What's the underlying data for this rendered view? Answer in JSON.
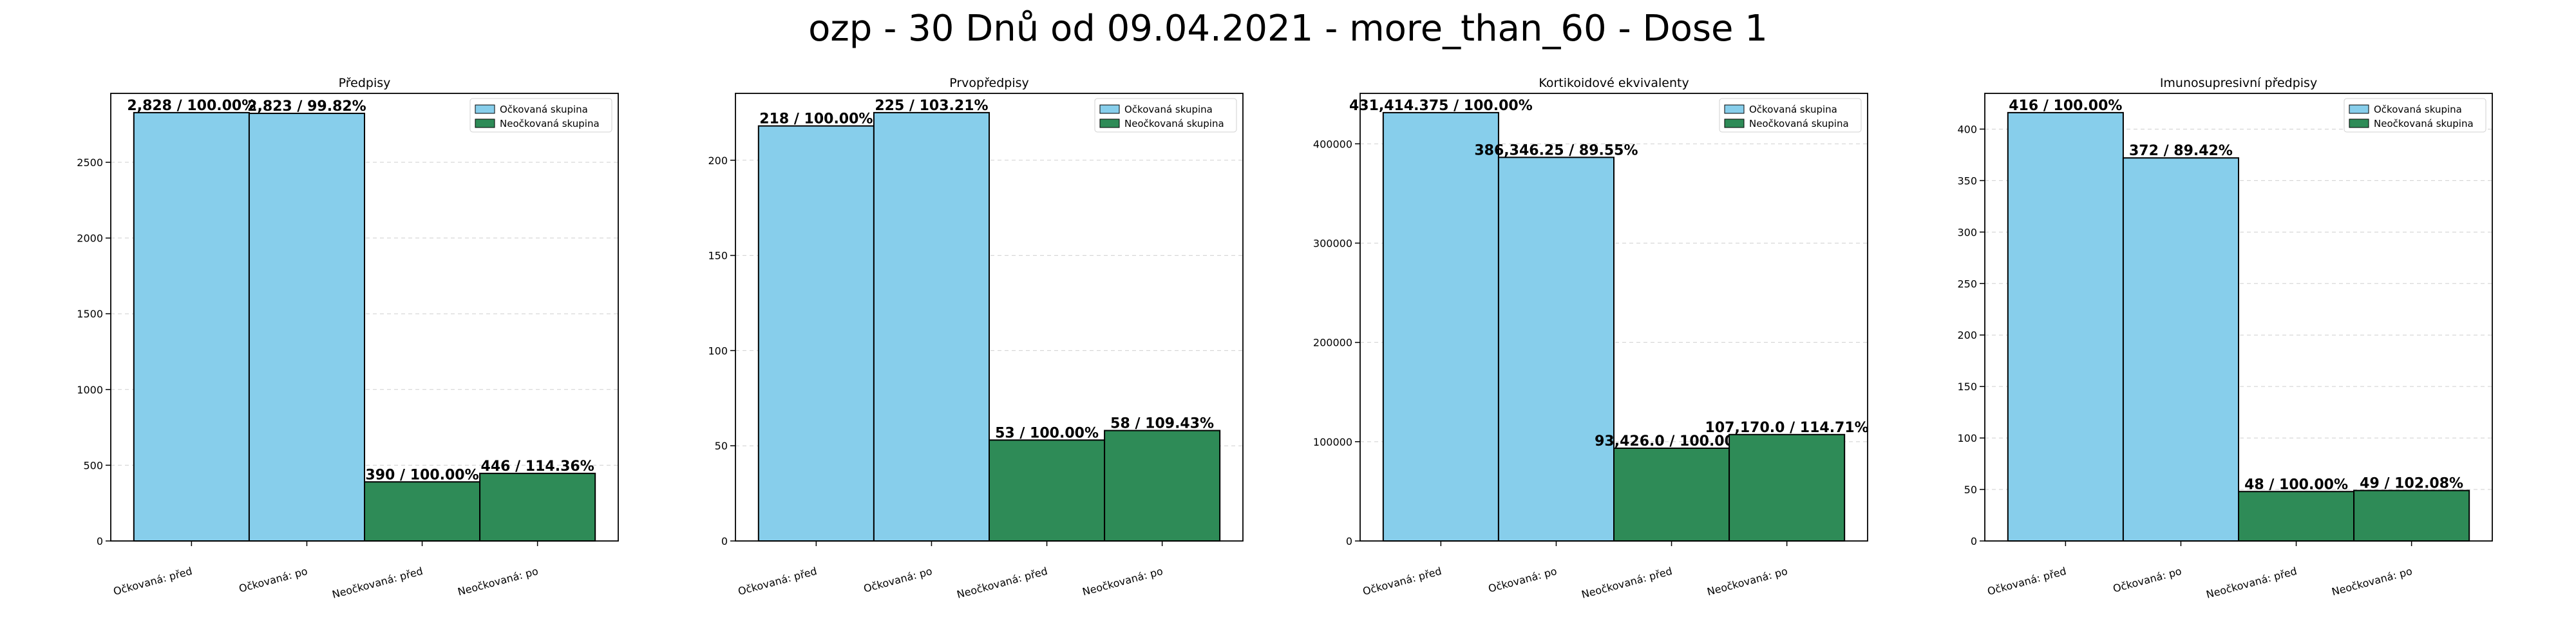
{
  "figure": {
    "suptitle": "ozp - 30 Dnů od 09.04.2021 - more_than_60 - Dose 1"
  },
  "colors": {
    "vaccinated": "#87CEEB",
    "unvaccinated": "#2E8B57",
    "edge": "#000000"
  },
  "chart_data": [
    {
      "type": "bar",
      "title": "Předpisy",
      "categories": [
        "Očkovaná: před",
        "Očkovaná: po",
        "Neočkovaná: před",
        "Neočkovaná: po"
      ],
      "values": [
        2828,
        2823,
        390,
        446
      ],
      "labels": [
        "2,828 / 100.00%",
        "2,823 / 99.82%",
        "390 / 100.00%",
        "446 / 114.36%"
      ],
      "legend": [
        "Očkovaná skupina",
        "Neočkovaná skupina"
      ],
      "legend_position": "top-right",
      "yticks": [
        0,
        500,
        1000,
        1500,
        2000,
        2500
      ],
      "ytick_labels": [
        "0",
        "500",
        "1000",
        "1500",
        "2000",
        "2500"
      ],
      "ylim": [
        0,
        2828
      ],
      "grid": true
    },
    {
      "type": "bar",
      "title": "Prvopředpisy",
      "categories": [
        "Očkovaná: před",
        "Očkovaná: po",
        "Neočkovaná: před",
        "Neočkovaná: po"
      ],
      "values": [
        218,
        225,
        53,
        58
      ],
      "labels": [
        "218 / 100.00%",
        "225 / 103.21%",
        "53 / 100.00%",
        "58 / 109.43%"
      ],
      "legend": [
        "Očkovaná skupina",
        "Neočkovaná skupina"
      ],
      "legend_position": "top-right",
      "yticks": [
        0,
        50,
        100,
        150,
        200
      ],
      "ytick_labels": [
        "0",
        "50",
        "100",
        "150",
        "200"
      ],
      "ylim": [
        0,
        225
      ],
      "grid": true
    },
    {
      "type": "bar",
      "title": "Kortikoidové ekvivalenty",
      "categories": [
        "Očkovaná: před",
        "Očkovaná: po",
        "Neočkovaná: před",
        "Neočkovaná: po"
      ],
      "values": [
        431414.375,
        386346.25,
        93426.0,
        107170.0
      ],
      "labels": [
        "431,414.375 / 100.00%",
        "386,346.25 / 89.55%",
        "93,426.0 / 100.00%",
        "107,170.0 / 114.71%"
      ],
      "legend": [
        "Očkovaná skupina",
        "Neočkovaná skupina"
      ],
      "legend_position": "top-right",
      "yticks": [
        0,
        100000,
        200000,
        300000,
        400000
      ],
      "ytick_labels": [
        "0",
        "100000",
        "200000",
        "300000",
        "400000"
      ],
      "ylim": [
        0,
        431414.375
      ],
      "grid": true
    },
    {
      "type": "bar",
      "title": "Imunosupresivní předpisy",
      "categories": [
        "Očkovaná: před",
        "Očkovaná: po",
        "Neočkovaná: před",
        "Neočkovaná: po"
      ],
      "values": [
        416,
        372,
        48,
        49
      ],
      "labels": [
        "416 / 100.00%",
        "372 / 89.42%",
        "48 / 100.00%",
        "49 / 102.08%"
      ],
      "legend": [
        "Očkovaná skupina",
        "Neočkovaná skupina"
      ],
      "legend_position": "top-right",
      "yticks": [
        0,
        50,
        100,
        150,
        200,
        250,
        300,
        350,
        400
      ],
      "ytick_labels": [
        "0",
        "50",
        "100",
        "150",
        "200",
        "250",
        "300",
        "350",
        "400"
      ],
      "ylim": [
        0,
        416
      ],
      "grid": true
    }
  ]
}
